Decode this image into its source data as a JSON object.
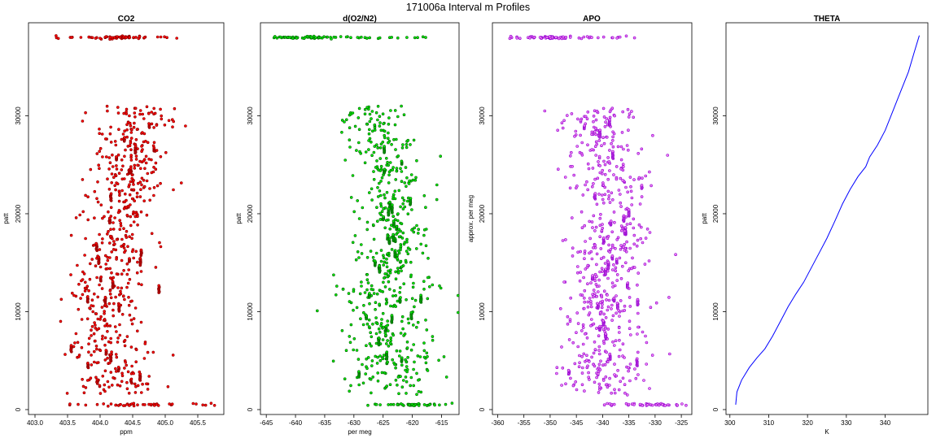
{
  "figure_title": "171006a   Interval m Profiles",
  "chart_data": [
    {
      "type": "scatter",
      "title": "CO2",
      "xlabel": "ppm",
      "ylabel": "patt",
      "xlim": [
        402.9,
        405.9
      ],
      "ylim": [
        -500,
        39500
      ],
      "xticks": [
        403.0,
        403.5,
        404.0,
        404.5,
        405.0,
        405.5
      ],
      "xtick_labels": [
        "403.0",
        "403.5",
        "404.0",
        "404.5",
        "405.0",
        "405.5"
      ],
      "yticks": [
        0,
        10000,
        20000,
        30000
      ],
      "ytick_labels": [
        "0",
        "10000",
        "20000",
        "30000"
      ],
      "color": "#ff0000",
      "edge_color": "#8b0000",
      "marker": "open-circle",
      "profile": [
        [
          0,
          404.35,
          0.6
        ],
        [
          3000,
          404.25,
          0.35
        ],
        [
          8000,
          404.05,
          0.3
        ],
        [
          12000,
          404.1,
          0.3
        ],
        [
          15000,
          404.2,
          0.3
        ],
        [
          18000,
          404.3,
          0.3
        ],
        [
          21000,
          404.35,
          0.3
        ],
        [
          24000,
          404.45,
          0.3
        ],
        [
          27000,
          404.55,
          0.3
        ],
        [
          31000,
          404.6,
          0.35
        ]
      ],
      "top_band": {
        "y": 38000,
        "x_min": 403.2,
        "x_max": 405.2,
        "x_center": 404.3
      },
      "bottom_band": {
        "y": 500,
        "x_min": 403.5,
        "x_max": 405.8,
        "x_center": 404.5
      },
      "data_top_y": 31000,
      "n_points": 560
    },
    {
      "type": "scatter",
      "title": "d(O2/N2)",
      "xlabel": "per meg",
      "ylabel": "patt",
      "xlim": [
        -646,
        -612
      ],
      "ylim": [
        -500,
        39500
      ],
      "xticks": [
        -645,
        -640,
        -635,
        -630,
        -625,
        -620,
        -615
      ],
      "xtick_labels": [
        "-645",
        "-640",
        "-635",
        "-630",
        "-625",
        "-620",
        "-615"
      ],
      "yticks": [
        0,
        10000,
        20000,
        30000
      ],
      "ytick_labels": [
        "0",
        "10000",
        "20000",
        "30000"
      ],
      "color": "#00ee00",
      "edge_color": "#006400",
      "marker": "open-circle",
      "profile": [
        [
          0,
          -623,
          5
        ],
        [
          3000,
          -623.5,
          4
        ],
        [
          8000,
          -624,
          4
        ],
        [
          12000,
          -624.5,
          4
        ],
        [
          15000,
          -623.5,
          3
        ],
        [
          18000,
          -622.5,
          3
        ],
        [
          21000,
          -622.5,
          3
        ],
        [
          24000,
          -623.5,
          3
        ],
        [
          27000,
          -625,
          3
        ],
        [
          31000,
          -627,
          3
        ]
      ],
      "top_band": {
        "y": 38000,
        "x_min": -644,
        "x_max": -617,
        "x_center": -638
      },
      "bottom_band": {
        "y": 500,
        "x_min": -628,
        "x_max": -613,
        "x_center": -620
      },
      "data_top_y": 31000,
      "n_points": 560
    },
    {
      "type": "scatter",
      "title": "APO",
      "xlabel": "",
      "ylabel": "approx. per meg",
      "xlim": [
        -361,
        -323
      ],
      "ylim": [
        -500,
        39500
      ],
      "xticks": [
        -360,
        -355,
        -350,
        -345,
        -340,
        -335,
        -330,
        -325
      ],
      "xtick_labels": [
        "-360",
        "-355",
        "-350",
        "-345",
        "-340",
        "-335",
        "-330",
        "-325"
      ],
      "yticks": [
        0,
        10000,
        20000,
        30000
      ],
      "ytick_labels": [
        "0",
        "10000",
        "20000",
        "30000"
      ],
      "color": "#ee82ee",
      "edge_color": "#9400d3",
      "marker": "open-circle",
      "profile": [
        [
          0,
          -339,
          5
        ],
        [
          3000,
          -339.5,
          4
        ],
        [
          8000,
          -340,
          4
        ],
        [
          12000,
          -340,
          4
        ],
        [
          15000,
          -339,
          4
        ],
        [
          18000,
          -338.5,
          4
        ],
        [
          21000,
          -338.5,
          4
        ],
        [
          24000,
          -339,
          4
        ],
        [
          27000,
          -339.5,
          4
        ],
        [
          31000,
          -341,
          4
        ]
      ],
      "top_band": {
        "y": 38000,
        "x_min": -359,
        "x_max": -333,
        "x_center": -350
      },
      "bottom_band": {
        "y": 500,
        "x_min": -340,
        "x_max": -324,
        "x_center": -332
      },
      "data_top_y": 31000,
      "n_points": 560
    },
    {
      "type": "line",
      "title": "THETA",
      "xlabel": "K",
      "ylabel": "patt",
      "xlim": [
        299,
        351
      ],
      "ylim": [
        -500,
        39500
      ],
      "xticks": [
        300,
        310,
        320,
        330,
        340
      ],
      "xtick_labels": [
        "300",
        "310",
        "320",
        "330",
        "340"
      ],
      "yticks": [
        0,
        10000,
        20000,
        30000
      ],
      "ytick_labels": [
        "0",
        "10000",
        "20000",
        "30000"
      ],
      "color": "#0000ff",
      "x": [
        301.5,
        301.8,
        303,
        305,
        307,
        309,
        311,
        313,
        315,
        317,
        319,
        321,
        323,
        325,
        327,
        329,
        331,
        333,
        335,
        336,
        338,
        340,
        342,
        344,
        346,
        347.5,
        348.8
      ],
      "y": [
        500,
        1800,
        3000,
        4300,
        5300,
        6200,
        7500,
        9000,
        10500,
        11800,
        13000,
        14500,
        16000,
        17500,
        19200,
        21000,
        22500,
        23800,
        24800,
        25800,
        27000,
        28500,
        30500,
        32500,
        34500,
        36500,
        38200
      ]
    }
  ]
}
